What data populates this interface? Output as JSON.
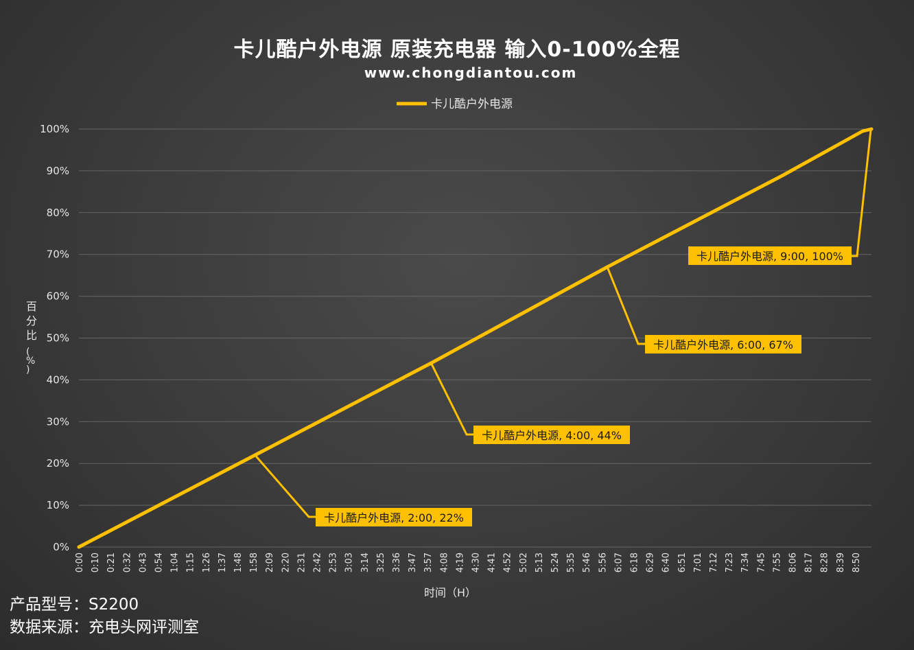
{
  "chart_data": {
    "type": "line",
    "title": "卡儿酷户外电源 原装充电器 输入0-100%全程",
    "subtitle": "www.chongdiantou.com",
    "xlabel": "时间（H）",
    "ylabel": "百分比（%）",
    "ylim": [
      0,
      100
    ],
    "yticks": [
      "0%",
      "10%",
      "20%",
      "30%",
      "40%",
      "50%",
      "60%",
      "70%",
      "80%",
      "90%",
      "100%"
    ],
    "xticks": [
      "0:00",
      "0:10",
      "0:21",
      "0:32",
      "0:43",
      "0:54",
      "1:04",
      "1:15",
      "1:26",
      "1:37",
      "1:48",
      "1:58",
      "2:09",
      "2:20",
      "2:31",
      "2:42",
      "2:53",
      "3:03",
      "3:14",
      "3:25",
      "3:36",
      "3:47",
      "3:57",
      "4:08",
      "4:19",
      "4:30",
      "4:41",
      "4:52",
      "5:02",
      "5:13",
      "5:24",
      "5:35",
      "5:46",
      "5:56",
      "6:07",
      "6:18",
      "6:29",
      "6:40",
      "6:51",
      "7:01",
      "7:12",
      "7:23",
      "7:34",
      "7:45",
      "7:55",
      "8:06",
      "8:17",
      "8:28",
      "8:39",
      "8:50"
    ],
    "x_hours_range": [
      0,
      9.0
    ],
    "grid": true,
    "legend_position": "top",
    "color": "#FFC000",
    "series": [
      {
        "name": "卡儿酷户外电源",
        "x_hours": [
          0,
          1,
          2,
          3,
          4,
          5,
          6,
          7,
          8,
          8.9,
          9.0
        ],
        "values": [
          0,
          11,
          22,
          33,
          44,
          55.5,
          67,
          78,
          89,
          99.5,
          100
        ]
      }
    ],
    "data_labels": [
      {
        "text": "卡儿酷户外电源, 2:00, 22%",
        "x_hours": 2,
        "value": 22
      },
      {
        "text": "卡儿酷户外电源, 4:00, 44%",
        "x_hours": 4,
        "value": 44
      },
      {
        "text": "卡儿酷户外电源, 6:00, 67%",
        "x_hours": 6,
        "value": 67
      },
      {
        "text": "卡儿酷户外电源, 9:00, 100%",
        "x_hours": 9.0,
        "value": 100
      }
    ]
  },
  "footer": {
    "model": "产品型号：S2200",
    "source": "数据来源：充电头网评测室"
  }
}
